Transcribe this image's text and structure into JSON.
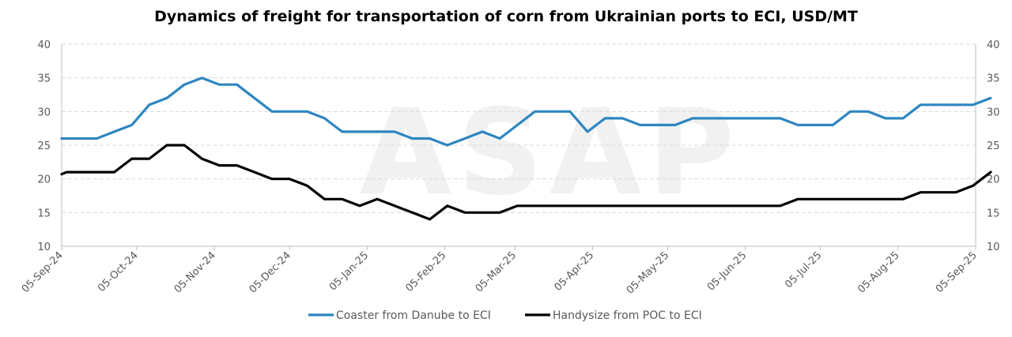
{
  "chart_data": {
    "type": "line",
    "title": "Dynamics of freight for transportation of corn from Ukrainian ports to ECI, USD/MT",
    "watermark": "ASAP",
    "xlabel": "",
    "ylabel": "",
    "x_range": [
      "2024-09-05",
      "2025-09-05"
    ],
    "x_ticks": [
      "05-Sep-24",
      "05-Oct-24",
      "05-Nov-24",
      "05-Dec-24",
      "05-Jan-25",
      "05-Feb-25",
      "05-Mar-25",
      "05-Apr-25",
      "05-May-25",
      "05-Jun-25",
      "05-Jul-25",
      "05-Aug-25",
      "05-Sep-25"
    ],
    "ylim": [
      10,
      40
    ],
    "y_ticks": [
      10,
      15,
      20,
      25,
      30,
      35,
      40
    ],
    "y2_ticks": [
      10,
      15,
      20,
      25,
      30,
      35,
      40
    ],
    "grid": true,
    "legend_position": "bottom",
    "series": [
      {
        "name": "Coaster from Danube to ECI",
        "color": "#2E86C1",
        "points": [
          [
            "2024-09-05",
            26
          ],
          [
            "2024-09-12",
            26
          ],
          [
            "2024-09-19",
            26
          ],
          [
            "2024-09-26",
            27
          ],
          [
            "2024-10-03",
            28
          ],
          [
            "2024-10-10",
            31
          ],
          [
            "2024-10-17",
            32
          ],
          [
            "2024-10-24",
            34
          ],
          [
            "2024-10-31",
            35
          ],
          [
            "2024-11-07",
            34
          ],
          [
            "2024-11-14",
            34
          ],
          [
            "2024-11-21",
            32
          ],
          [
            "2024-11-28",
            30
          ],
          [
            "2024-12-05",
            30
          ],
          [
            "2024-12-12",
            30
          ],
          [
            "2024-12-19",
            29
          ],
          [
            "2024-12-26",
            27
          ],
          [
            "2025-01-02",
            27
          ],
          [
            "2025-01-09",
            27
          ],
          [
            "2025-01-16",
            27
          ],
          [
            "2025-01-23",
            26
          ],
          [
            "2025-01-30",
            26
          ],
          [
            "2025-02-06",
            25
          ],
          [
            "2025-02-13",
            26
          ],
          [
            "2025-02-20",
            27
          ],
          [
            "2025-02-27",
            26
          ],
          [
            "2025-03-06",
            28
          ],
          [
            "2025-03-13",
            30
          ],
          [
            "2025-03-20",
            30
          ],
          [
            "2025-03-27",
            30
          ],
          [
            "2025-04-03",
            27
          ],
          [
            "2025-04-10",
            29
          ],
          [
            "2025-04-17",
            29
          ],
          [
            "2025-04-24",
            28
          ],
          [
            "2025-05-01",
            28
          ],
          [
            "2025-05-08",
            28
          ],
          [
            "2025-05-15",
            29
          ],
          [
            "2025-05-22",
            29
          ],
          [
            "2025-05-29",
            29
          ],
          [
            "2025-06-05",
            29
          ],
          [
            "2025-06-12",
            29
          ],
          [
            "2025-06-19",
            29
          ],
          [
            "2025-06-26",
            28
          ],
          [
            "2025-07-03",
            28
          ],
          [
            "2025-07-10",
            28
          ],
          [
            "2025-07-17",
            30
          ],
          [
            "2025-07-24",
            30
          ],
          [
            "2025-07-31",
            29
          ],
          [
            "2025-08-07",
            29
          ],
          [
            "2025-08-14",
            31
          ],
          [
            "2025-08-21",
            31
          ],
          [
            "2025-08-28",
            31
          ],
          [
            "2025-09-04",
            31
          ],
          [
            "2025-09-11",
            32
          ]
        ]
      },
      {
        "name": "Handysize from POC to ECI",
        "color": "#000000",
        "points": [
          [
            "2024-09-05",
            20.7
          ],
          [
            "2024-09-07",
            21
          ],
          [
            "2024-09-19",
            21
          ],
          [
            "2024-09-26",
            21
          ],
          [
            "2024-10-03",
            23
          ],
          [
            "2024-10-10",
            23
          ],
          [
            "2024-10-17",
            25
          ],
          [
            "2024-10-24",
            25
          ],
          [
            "2024-10-31",
            23
          ],
          [
            "2024-11-07",
            22
          ],
          [
            "2024-11-14",
            22
          ],
          [
            "2024-11-21",
            21
          ],
          [
            "2024-11-28",
            20
          ],
          [
            "2024-12-05",
            20
          ],
          [
            "2024-12-12",
            19
          ],
          [
            "2024-12-19",
            17
          ],
          [
            "2024-12-26",
            17
          ],
          [
            "2025-01-02",
            16
          ],
          [
            "2025-01-09",
            17
          ],
          [
            "2025-01-16",
            16
          ],
          [
            "2025-01-23",
            15
          ],
          [
            "2025-01-30",
            14
          ],
          [
            "2025-02-06",
            16
          ],
          [
            "2025-02-13",
            15
          ],
          [
            "2025-02-20",
            15
          ],
          [
            "2025-02-27",
            15
          ],
          [
            "2025-03-06",
            16
          ],
          [
            "2025-03-13",
            16
          ],
          [
            "2025-03-20",
            16
          ],
          [
            "2025-03-27",
            16
          ],
          [
            "2025-04-03",
            16
          ],
          [
            "2025-04-10",
            16
          ],
          [
            "2025-04-17",
            16
          ],
          [
            "2025-04-24",
            16
          ],
          [
            "2025-05-01",
            16
          ],
          [
            "2025-05-08",
            16
          ],
          [
            "2025-05-15",
            16
          ],
          [
            "2025-05-22",
            16
          ],
          [
            "2025-05-29",
            16
          ],
          [
            "2025-06-05",
            16
          ],
          [
            "2025-06-12",
            16
          ],
          [
            "2025-06-19",
            16
          ],
          [
            "2025-06-26",
            17
          ],
          [
            "2025-07-03",
            17
          ],
          [
            "2025-07-10",
            17
          ],
          [
            "2025-07-17",
            17
          ],
          [
            "2025-07-24",
            17
          ],
          [
            "2025-07-31",
            17
          ],
          [
            "2025-08-07",
            17
          ],
          [
            "2025-08-14",
            18
          ],
          [
            "2025-08-21",
            18
          ],
          [
            "2025-08-28",
            18
          ],
          [
            "2025-09-04",
            19
          ],
          [
            "2025-09-11",
            21
          ]
        ]
      }
    ]
  }
}
